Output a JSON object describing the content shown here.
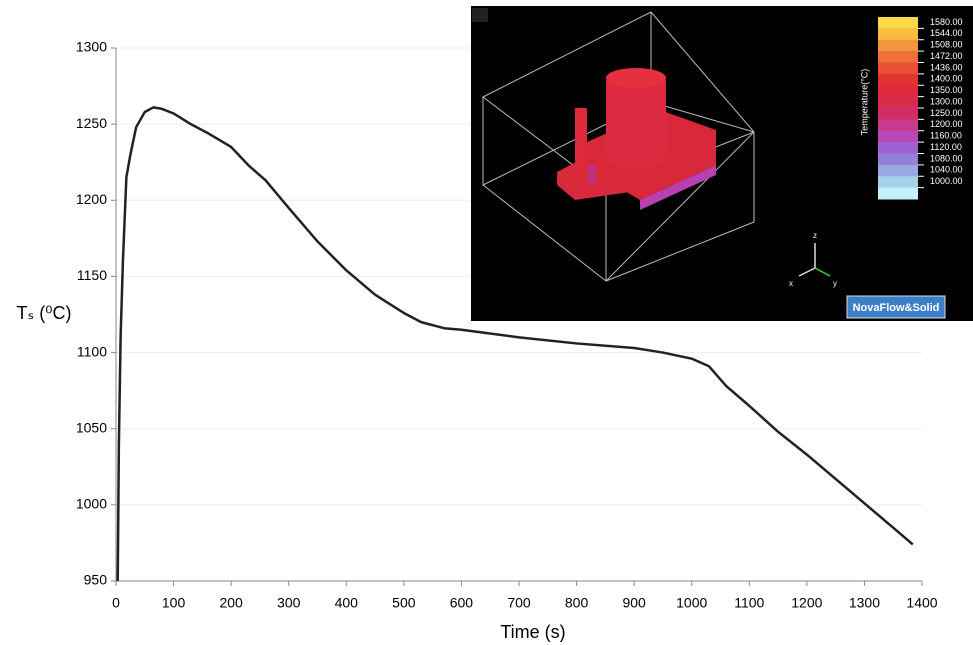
{
  "chart_data": {
    "type": "line",
    "xlabel": "Time (s)",
    "ylabel": "Tₛ (⁰C)",
    "x": [
      3,
      5,
      8,
      12,
      18,
      25,
      35,
      50,
      65,
      80,
      100,
      130,
      160,
      200,
      230,
      260,
      300,
      350,
      400,
      450,
      500,
      530,
      570,
      600,
      700,
      800,
      900,
      950,
      1000,
      1030,
      1060,
      1100,
      1150,
      1200,
      1250,
      1300,
      1350,
      1384
    ],
    "series": [
      {
        "color": "#222222",
        "values": [
          950,
          1040,
          1110,
          1160,
          1215,
          1230,
          1248,
          1258,
          1261,
          1260,
          1257,
          1250,
          1244,
          1235,
          1223,
          1213,
          1195,
          1173,
          1154,
          1138,
          1126,
          1120,
          1116,
          1115,
          1110,
          1106,
          1103,
          1100,
          1096,
          1091,
          1078,
          1065,
          1048,
          1033,
          1017,
          1001,
          985,
          974
        ]
      }
    ],
    "xlim": [
      0,
      1400
    ],
    "xticks": [
      0,
      100,
      200,
      300,
      400,
      500,
      600,
      700,
      800,
      900,
      1000,
      1100,
      1200,
      1300,
      1400
    ],
    "ylim": [
      950,
      1300
    ],
    "yticks": [
      950,
      1000,
      1050,
      1100,
      1150,
      1200,
      1250,
      1300
    ],
    "grid": true
  },
  "inset": {
    "legend_title": "Temperature(°C)",
    "legend_labels": [
      "1580.00",
      "1544.00",
      "1508.00",
      "1472.00",
      "1436.00",
      "1400.00",
      "1350.00",
      "1300.00",
      "1250.00",
      "1200.00",
      "1160.00",
      "1120.00",
      "1080.00",
      "1040.00",
      "1000.00"
    ],
    "legend_colors": [
      "#f7da46",
      "#f6bd40",
      "#f2963c",
      "#ee7038",
      "#e85034",
      "#e23430",
      "#de2a3c",
      "#d82a4c",
      "#d02e62",
      "#c83a8e",
      "#b848b8",
      "#a060d0",
      "#9082d8",
      "#98a8e0",
      "#a8d0ea",
      "#c4f0f8"
    ],
    "axis_z": "z",
    "axis_x": "x",
    "axis_y": "y",
    "logo": "NovaFlow&Solid"
  }
}
